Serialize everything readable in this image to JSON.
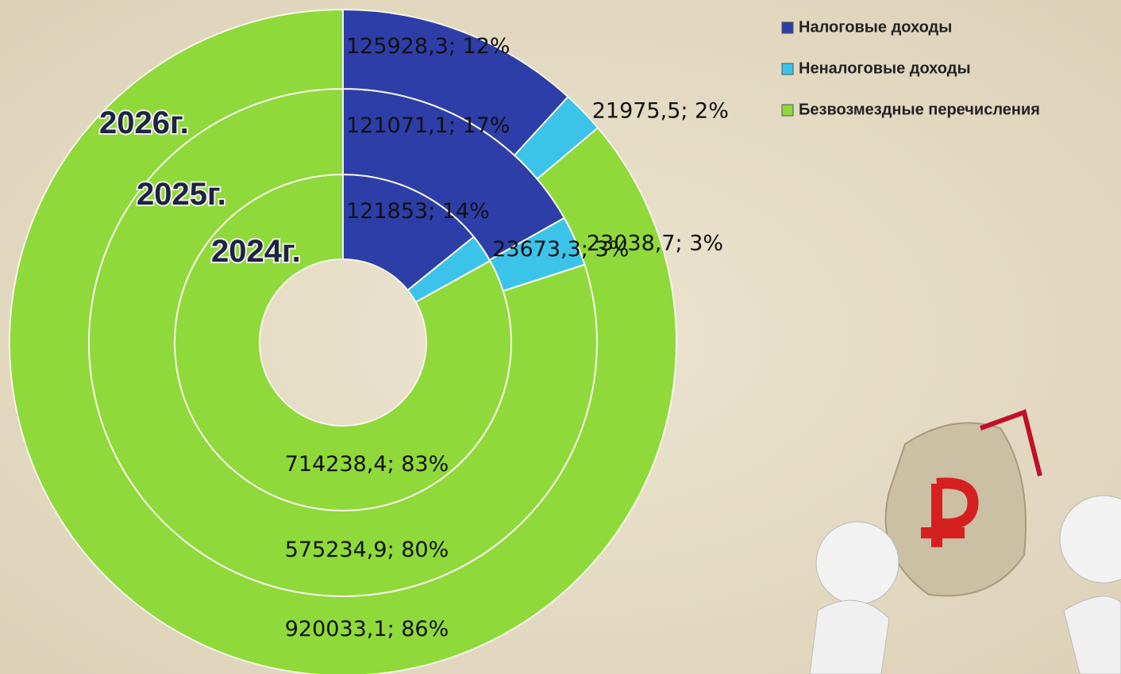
{
  "chart_data": {
    "type": "donut",
    "rings": [
      "2024г.",
      "2025г.",
      "2026г."
    ],
    "series": [
      {
        "name": "Налоговые доходы",
        "color": "#2d3ea8",
        "values": [
          121853,
          121071.1,
          125928.3
        ],
        "value_labels": [
          "121853; 14%",
          "121071,1; 17%",
          "125928,3; 12%"
        ]
      },
      {
        "name": "Неналоговые доходы",
        "color": "#3cc3ea",
        "values": [
          23673.3,
          23038.7,
          21975.5
        ],
        "value_labels": [
          "23673,3; 3%",
          "23038,7; 3%",
          "21975,5; 2%"
        ]
      },
      {
        "name": "Безвозмездные перечисления",
        "color": "#8fd93b",
        "values": [
          714238.4,
          575234.9,
          920033.1
        ],
        "value_labels": [
          "714238,4; 83%",
          "575234,9; 80%",
          "920033,1; 86%"
        ]
      }
    ],
    "legend": "top-right"
  }
}
